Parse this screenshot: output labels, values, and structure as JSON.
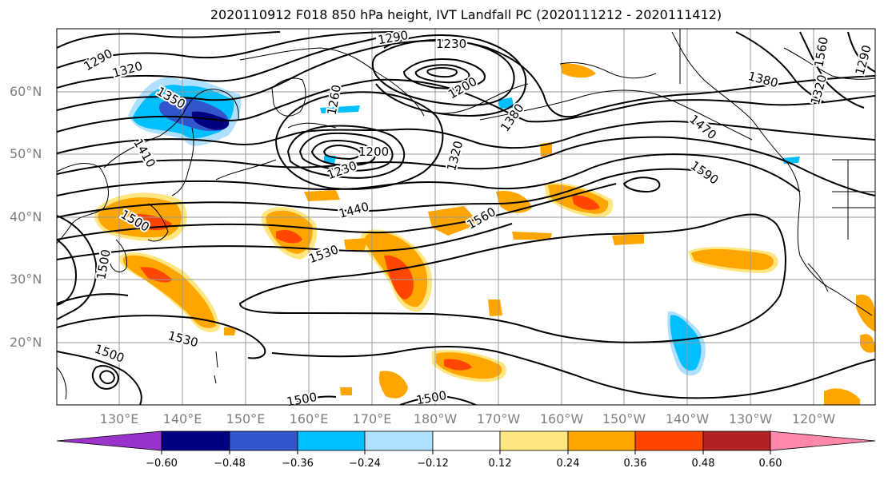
{
  "title": "2020110912 F018 850 hPa height, IVT Landfall PC (2020111212 - 2020111412)",
  "map": {
    "lat_labels": [
      "60°N",
      "50°N",
      "40°N",
      "30°N",
      "20°N"
    ],
    "lon_labels": [
      "130°E",
      "140°E",
      "150°E",
      "160°E",
      "170°E",
      "180°W",
      "170°W",
      "160°W",
      "150°W",
      "140°W",
      "130°W",
      "120°W"
    ],
    "contour_labels": [
      "1290",
      "1320",
      "1350",
      "1410",
      "1500",
      "1290",
      "1230",
      "1200",
      "1380",
      "1260",
      "1200",
      "1230",
      "1320",
      "1380",
      "1290",
      "1320",
      "1470",
      "1590",
      "1440",
      "1560",
      "1530",
      "1500",
      "1530",
      "1500",
      "1500",
      "1500",
      "1560"
    ]
  },
  "colorbar": {
    "tick_labels": [
      "−0.60",
      "−0.48",
      "−0.36",
      "−0.24",
      "−0.12",
      "0.12",
      "0.24",
      "0.36",
      "0.48",
      "0.60"
    ],
    "colors": [
      "#9933cc",
      "#000080",
      "#3355cc",
      "#00bfff",
      "#b0e0ff",
      "#ffffff",
      "#ffe680",
      "#ffa500",
      "#ff4500",
      "#b22222",
      "#ff88aa"
    ]
  }
}
